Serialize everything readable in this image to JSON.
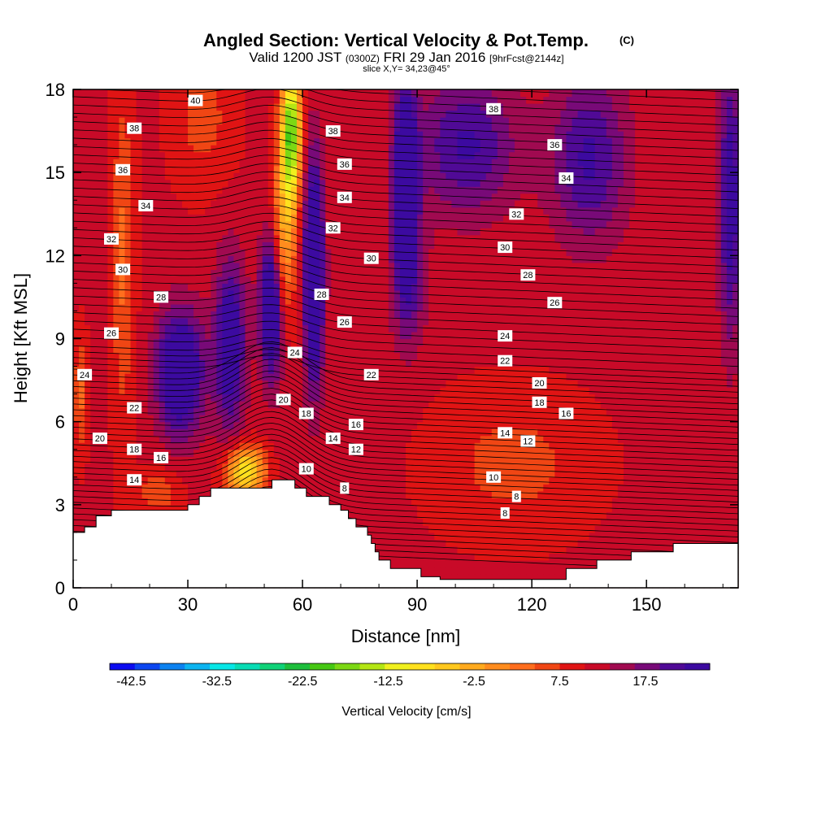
{
  "title": {
    "main": "Angled Section: Vertical Velocity & Pot.Temp.",
    "copyright": "(C)",
    "valid": "Valid 1200 JST",
    "valid_utc": "(0300Z)",
    "date": "FRI 29 Jan 2016",
    "forecast": "[9hrFcst@2144z]",
    "slice": "slice X,Y= 34,23@45°"
  },
  "chart_data": {
    "type": "heatmap",
    "xlabel": "Distance [nm]",
    "ylabel": "Height [Kft MSL]",
    "xlim": [
      0,
      174
    ],
    "ylim": [
      0,
      18
    ],
    "x_ticks": [
      0,
      30,
      60,
      90,
      120,
      150
    ],
    "y_ticks": [
      0,
      3,
      6,
      9,
      12,
      15,
      18
    ],
    "colorbar": {
      "title": "Vertical Velocity [cm/s]",
      "tick_labels": [
        "-42.5",
        "-32.5",
        "-22.5",
        "-12.5",
        "-2.5",
        "7.5",
        "17.5"
      ],
      "tick_values": [
        -42.5,
        -32.5,
        -22.5,
        -12.5,
        -2.5,
        7.5,
        17.5
      ],
      "min": -45,
      "max": 25,
      "step": 2.5,
      "colors": [
        "#0c0cf0",
        "#0c46f0",
        "#0c82f0",
        "#0cb4f0",
        "#08e6e6",
        "#08dcb4",
        "#10d278",
        "#1ebe3c",
        "#46c814",
        "#7cd814",
        "#b4e614",
        "#f0f01e",
        "#ffe11e",
        "#ffc81e",
        "#ffaa1e",
        "#ff8c1e",
        "#ff6e1e",
        "#f04614",
        "#e01414",
        "#c80a28",
        "#a00a50",
        "#780a78",
        "#500a96",
        "#3c0aa0"
      ]
    },
    "velocity_field": {
      "background": 3,
      "features": [
        {
          "x": 28,
          "z": 7.8,
          "sx": 6,
          "sz": 2.2,
          "amp": 17
        },
        {
          "x": 41,
          "z": 8.8,
          "sx": 4,
          "sz": 3.0,
          "amp": 14
        },
        {
          "x": 52,
          "z": 10.2,
          "sx": 3,
          "sz": 2.6,
          "amp": 18
        },
        {
          "x": 63,
          "z": 11.4,
          "sx": 2.5,
          "sz": 4.0,
          "amp": 20
        },
        {
          "x": 87,
          "z": 14.6,
          "sx": 3,
          "sz": 3.5,
          "amp": 20
        },
        {
          "x": 88,
          "z": 11.0,
          "sx": 5,
          "sz": 2.5,
          "amp": 6
        },
        {
          "x": 103,
          "z": 16.0,
          "sx": 13,
          "sz": 2.5,
          "amp": 10
        },
        {
          "x": 135,
          "z": 15.5,
          "sx": 10,
          "sz": 3.0,
          "amp": 10
        },
        {
          "x": 172,
          "z": 14.0,
          "sx": 3,
          "sz": 5.0,
          "amp": 12
        },
        {
          "x": 57,
          "z": 16.5,
          "sx": 2.5,
          "sz": 2.5,
          "amp": -26
        },
        {
          "x": 55,
          "z": 12.5,
          "sx": 3,
          "sz": 3.0,
          "amp": -12
        },
        {
          "x": 45,
          "z": 4.2,
          "sx": 5,
          "sz": 0.9,
          "amp": -18
        },
        {
          "x": 13,
          "z": 12.0,
          "sx": 3,
          "sz": 6.0,
          "amp": -6
        },
        {
          "x": 2,
          "z": 7.0,
          "sx": 2,
          "sz": 2.0,
          "amp": -6
        },
        {
          "x": 34,
          "z": 17.0,
          "sx": 8,
          "sz": 2.5,
          "amp": -4
        },
        {
          "x": 22,
          "z": 3.5,
          "sx": 6,
          "sz": 0.8,
          "amp": -5
        },
        {
          "x": 115,
          "z": 4.5,
          "sx": 20,
          "sz": 2.5,
          "amp": -4
        }
      ]
    },
    "theta_levels": [
      8,
      10,
      12,
      14,
      16,
      18,
      20,
      22,
      24,
      26,
      28,
      30,
      32,
      34,
      36,
      38,
      40
    ],
    "contour_labels": [
      {
        "text": "40",
        "x": 32,
        "y": 17.6
      },
      {
        "text": "38",
        "x": 16,
        "y": 16.6
      },
      {
        "text": "36",
        "x": 13,
        "y": 15.1
      },
      {
        "text": "34",
        "x": 19,
        "y": 13.8
      },
      {
        "text": "32",
        "x": 10,
        "y": 12.6
      },
      {
        "text": "30",
        "x": 13,
        "y": 11.5
      },
      {
        "text": "28",
        "x": 23,
        "y": 10.5
      },
      {
        "text": "26",
        "x": 10,
        "y": 9.2
      },
      {
        "text": "24",
        "x": 3,
        "y": 7.7
      },
      {
        "text": "22",
        "x": 16,
        "y": 6.5
      },
      {
        "text": "20",
        "x": 7,
        "y": 5.4
      },
      {
        "text": "18",
        "x": 16,
        "y": 5.0
      },
      {
        "text": "16",
        "x": 23,
        "y": 4.7
      },
      {
        "text": "14",
        "x": 16,
        "y": 3.9
      },
      {
        "text": "38",
        "x": 68,
        "y": 16.5
      },
      {
        "text": "36",
        "x": 71,
        "y": 15.3
      },
      {
        "text": "34",
        "x": 71,
        "y": 14.1
      },
      {
        "text": "32",
        "x": 68,
        "y": 13.0
      },
      {
        "text": "30",
        "x": 78,
        "y": 11.9
      },
      {
        "text": "28",
        "x": 65,
        "y": 10.6
      },
      {
        "text": "26",
        "x": 71,
        "y": 9.6
      },
      {
        "text": "24",
        "x": 58,
        "y": 8.5
      },
      {
        "text": "22",
        "x": 78,
        "y": 7.7
      },
      {
        "text": "20",
        "x": 55,
        "y": 6.8
      },
      {
        "text": "18",
        "x": 61,
        "y": 6.3
      },
      {
        "text": "16",
        "x": 74,
        "y": 5.9
      },
      {
        "text": "14",
        "x": 68,
        "y": 5.4
      },
      {
        "text": "12",
        "x": 74,
        "y": 5.0
      },
      {
        "text": "10",
        "x": 61,
        "y": 4.3
      },
      {
        "text": "8",
        "x": 71,
        "y": 3.6
      },
      {
        "text": "38",
        "x": 110,
        "y": 17.3
      },
      {
        "text": "36",
        "x": 126,
        "y": 16.0
      },
      {
        "text": "34",
        "x": 129,
        "y": 14.8
      },
      {
        "text": "32",
        "x": 116,
        "y": 13.5
      },
      {
        "text": "30",
        "x": 113,
        "y": 12.3
      },
      {
        "text": "28",
        "x": 119,
        "y": 11.3
      },
      {
        "text": "26",
        "x": 126,
        "y": 10.3
      },
      {
        "text": "24",
        "x": 113,
        "y": 9.1
      },
      {
        "text": "22",
        "x": 113,
        "y": 8.2
      },
      {
        "text": "20",
        "x": 122,
        "y": 7.4
      },
      {
        "text": "18",
        "x": 122,
        "y": 6.7
      },
      {
        "text": "16",
        "x": 129,
        "y": 6.3
      },
      {
        "text": "14",
        "x": 113,
        "y": 5.6
      },
      {
        "text": "12",
        "x": 119,
        "y": 5.3
      },
      {
        "text": "10",
        "x": 110,
        "y": 4.0
      },
      {
        "text": "8",
        "x": 116,
        "y": 3.3
      },
      {
        "text": "8",
        "x": 113,
        "y": 2.7
      }
    ],
    "terrain": [
      {
        "x": 0,
        "y": 2.0
      },
      {
        "x": 3,
        "y": 2.0
      },
      {
        "x": 3,
        "y": 2.2
      },
      {
        "x": 6,
        "y": 2.2
      },
      {
        "x": 6,
        "y": 2.6
      },
      {
        "x": 10,
        "y": 2.6
      },
      {
        "x": 10,
        "y": 2.8
      },
      {
        "x": 30,
        "y": 2.8
      },
      {
        "x": 30,
        "y": 3.0
      },
      {
        "x": 33,
        "y": 3.0
      },
      {
        "x": 33,
        "y": 3.3
      },
      {
        "x": 36,
        "y": 3.3
      },
      {
        "x": 36,
        "y": 3.6
      },
      {
        "x": 52,
        "y": 3.6
      },
      {
        "x": 52,
        "y": 3.9
      },
      {
        "x": 58,
        "y": 3.9
      },
      {
        "x": 58,
        "y": 3.6
      },
      {
        "x": 61,
        "y": 3.6
      },
      {
        "x": 61,
        "y": 3.3
      },
      {
        "x": 67,
        "y": 3.3
      },
      {
        "x": 67,
        "y": 3.0
      },
      {
        "x": 70,
        "y": 3.0
      },
      {
        "x": 70,
        "y": 2.8
      },
      {
        "x": 72,
        "y": 2.8
      },
      {
        "x": 72,
        "y": 2.5
      },
      {
        "x": 74,
        "y": 2.5
      },
      {
        "x": 74,
        "y": 2.2
      },
      {
        "x": 77,
        "y": 2.2
      },
      {
        "x": 77,
        "y": 1.9
      },
      {
        "x": 78,
        "y": 1.9
      },
      {
        "x": 78,
        "y": 1.6
      },
      {
        "x": 79,
        "y": 1.6
      },
      {
        "x": 79,
        "y": 1.3
      },
      {
        "x": 80,
        "y": 1.3
      },
      {
        "x": 80,
        "y": 1.0
      },
      {
        "x": 83,
        "y": 1.0
      },
      {
        "x": 83,
        "y": 0.7
      },
      {
        "x": 91,
        "y": 0.7
      },
      {
        "x": 91,
        "y": 0.4
      },
      {
        "x": 96,
        "y": 0.4
      },
      {
        "x": 96,
        "y": 0.3
      },
      {
        "x": 129,
        "y": 0.3
      },
      {
        "x": 129,
        "y": 0.7
      },
      {
        "x": 137,
        "y": 0.7
      },
      {
        "x": 137,
        "y": 1.0
      },
      {
        "x": 146,
        "y": 1.0
      },
      {
        "x": 146,
        "y": 1.3
      },
      {
        "x": 157,
        "y": 1.3
      },
      {
        "x": 157,
        "y": 1.6
      },
      {
        "x": 174,
        "y": 1.6
      }
    ]
  }
}
